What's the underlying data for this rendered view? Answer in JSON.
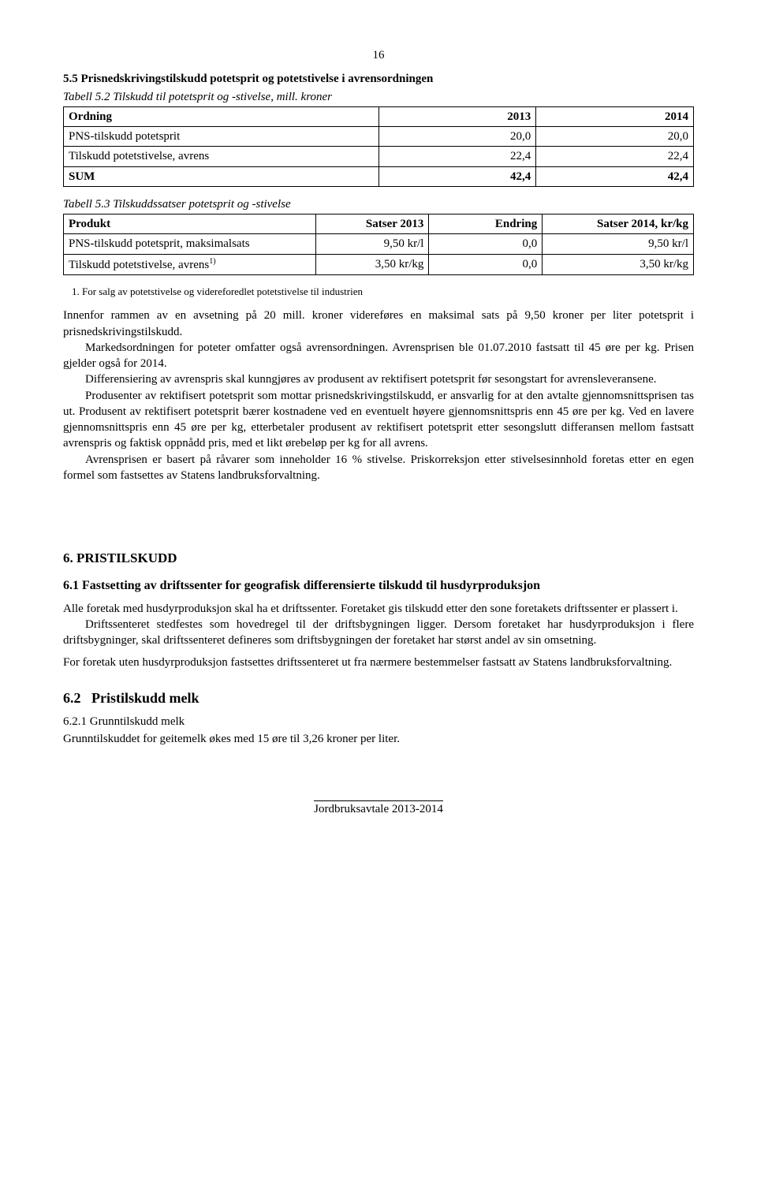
{
  "page_number": "16",
  "section_5_5_title": "5.5 Prisnedskrivingstilskudd potetsprit og potetstivelse i avrensordningen",
  "table1": {
    "type": "table",
    "caption": "Tabell 5.2 Tilskudd til potetsprit og -stivelse, mill. kroner",
    "columns": [
      "Ordning",
      "2013",
      "2014"
    ],
    "rows": [
      [
        "PNS-tilskudd potetsprit",
        "20,0",
        "20,0"
      ],
      [
        "Tilskudd potetstivelse, avrens",
        "22,4",
        "22,4"
      ],
      [
        "SUM",
        "42,4",
        "42,4"
      ]
    ],
    "border_color": "#000000",
    "background_color": "#ffffff",
    "font_size": 15
  },
  "table2": {
    "type": "table",
    "caption": "Tabell 5.3 Tilskuddssatser potetsprit og -stivelse",
    "columns": [
      "Produkt",
      "Satser 2013",
      "Endring",
      "Satser 2014, kr/kg"
    ],
    "rows": [
      [
        "PNS-tilskudd potetsprit, maksimalsats",
        "9,50 kr/l",
        "0,0",
        "9,50 kr/l"
      ],
      [
        "Tilskudd potetstivelse, avrens",
        "3,50 kr/kg",
        "0,0",
        "3,50 kr/kg"
      ]
    ],
    "row1_sup": "1)",
    "border_color": "#000000",
    "background_color": "#ffffff",
    "font_size": 15
  },
  "footnote1": "For salg av potetstivelse og videreforedlet potetstivelse til industrien",
  "body": {
    "p1": "Innenfor rammen av en avsetning på 20 mill. kroner videreføres en maksimal sats på 9,50 kroner per liter potetsprit i prisnedskrivingstilskudd.",
    "p2": "Markedsordningen for poteter omfatter også avrensordningen. Avrensprisen ble 01.07.2010 fastsatt til 45 øre per kg. Prisen gjelder også for 2014.",
    "p3": "Differensiering av avrenspris skal kunngjøres av produsent av rektifisert potetsprit før sesongstart for avrensleveransene.",
    "p4": "Produsenter av rektifisert potetsprit som mottar prisnedskrivingstilskudd, er ansvarlig for at den avtalte gjennomsnittsprisen tas ut. Produsent av rektifisert potetsprit bærer kostnadene ved en eventuelt høyere gjennomsnittspris enn 45 øre per kg. Ved en lavere gjennomsnittspris enn 45 øre per kg, etterbetaler produsent av rektifisert potetsprit etter sesongslutt differansen mellom fastsatt avrenspris og faktisk oppnådd pris, med et likt ørebeløp per kg for all avrens.",
    "p5": "Avrensprisen er basert på råvarer som inneholder 16 % stivelse. Priskorreksjon etter stivelsesinnhold foretas etter en egen formel som fastsettes av Statens landbruksforvaltning."
  },
  "h6": "6. PRISTILSKUDD",
  "h6_1": "6.1 Fastsetting av driftssenter for geografisk differensierte tilskudd til husdyrproduksjon",
  "body6": {
    "p1": "Alle foretak med husdyrproduksjon skal ha et driftssenter. Foretaket gis tilskudd etter den sone foretakets driftssenter er plassert i.",
    "p2": "Driftssenteret stedfestes som hovedregel til der driftsbygningen ligger. Dersom foretaket har husdyrproduksjon i flere driftsbygninger, skal driftssenteret defineres som driftsbygningen der foretaket har størst andel av sin omsetning.",
    "p3": "For foretak uten husdyrproduksjon fastsettes driftssenteret ut fra nærmere bestemmelser fastsatt av Statens landbruksforvaltning."
  },
  "h6_2_num": "6.2",
  "h6_2_txt": "Pristilskudd melk",
  "h6_2_1": "6.2.1 Grunntilskudd melk",
  "p6_2_1": "Grunntilskuddet for geitemelk økes med 15 øre til 3,26 kroner per liter.",
  "footer": "Jordbruksavtale 2013-2014"
}
